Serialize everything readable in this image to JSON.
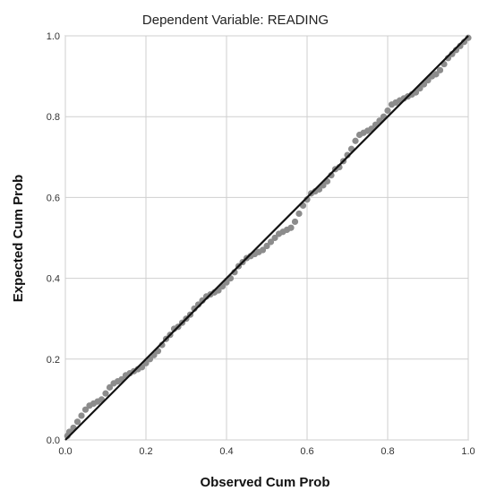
{
  "chart_data": {
    "type": "scatter",
    "title": "Dependent Variable: READING",
    "xlabel": "Observed Cum Prob",
    "ylabel": "Expected Cum Prob",
    "xlim": [
      0,
      1
    ],
    "ylim": [
      0,
      1
    ],
    "x_ticks": [
      "0.0",
      "0.2",
      "0.4",
      "0.6",
      "0.8",
      "1.0"
    ],
    "y_ticks": [
      "0.0",
      "0.2",
      "0.4",
      "0.6",
      "0.8",
      "1.0"
    ],
    "grid": true,
    "reference_line": [
      [
        0,
        0
      ],
      [
        1,
        1
      ]
    ],
    "point_color": "#8c8c8c",
    "line_color": "#111111",
    "points": [
      [
        0.005,
        0.01
      ],
      [
        0.01,
        0.02
      ],
      [
        0.02,
        0.03
      ],
      [
        0.03,
        0.045
      ],
      [
        0.04,
        0.06
      ],
      [
        0.05,
        0.075
      ],
      [
        0.06,
        0.085
      ],
      [
        0.07,
        0.09
      ],
      [
        0.08,
        0.095
      ],
      [
        0.09,
        0.1
      ],
      [
        0.1,
        0.115
      ],
      [
        0.11,
        0.13
      ],
      [
        0.12,
        0.14
      ],
      [
        0.13,
        0.145
      ],
      [
        0.14,
        0.15
      ],
      [
        0.15,
        0.16
      ],
      [
        0.16,
        0.165
      ],
      [
        0.17,
        0.17
      ],
      [
        0.18,
        0.175
      ],
      [
        0.19,
        0.18
      ],
      [
        0.2,
        0.19
      ],
      [
        0.21,
        0.2
      ],
      [
        0.22,
        0.21
      ],
      [
        0.23,
        0.22
      ],
      [
        0.24,
        0.235
      ],
      [
        0.25,
        0.25
      ],
      [
        0.26,
        0.26
      ],
      [
        0.27,
        0.275
      ],
      [
        0.28,
        0.28
      ],
      [
        0.29,
        0.29
      ],
      [
        0.3,
        0.3
      ],
      [
        0.31,
        0.31
      ],
      [
        0.32,
        0.325
      ],
      [
        0.33,
        0.335
      ],
      [
        0.34,
        0.345
      ],
      [
        0.35,
        0.355
      ],
      [
        0.36,
        0.36
      ],
      [
        0.37,
        0.365
      ],
      [
        0.38,
        0.37
      ],
      [
        0.39,
        0.38
      ],
      [
        0.4,
        0.39
      ],
      [
        0.41,
        0.4
      ],
      [
        0.42,
        0.415
      ],
      [
        0.43,
        0.43
      ],
      [
        0.44,
        0.44
      ],
      [
        0.45,
        0.45
      ],
      [
        0.46,
        0.455
      ],
      [
        0.47,
        0.46
      ],
      [
        0.48,
        0.465
      ],
      [
        0.49,
        0.47
      ],
      [
        0.5,
        0.48
      ],
      [
        0.51,
        0.49
      ],
      [
        0.52,
        0.5
      ],
      [
        0.53,
        0.51
      ],
      [
        0.54,
        0.515
      ],
      [
        0.55,
        0.52
      ],
      [
        0.56,
        0.525
      ],
      [
        0.57,
        0.54
      ],
      [
        0.58,
        0.56
      ],
      [
        0.59,
        0.58
      ],
      [
        0.6,
        0.595
      ],
      [
        0.61,
        0.61
      ],
      [
        0.62,
        0.615
      ],
      [
        0.63,
        0.62
      ],
      [
        0.64,
        0.63
      ],
      [
        0.65,
        0.64
      ],
      [
        0.66,
        0.655
      ],
      [
        0.67,
        0.67
      ],
      [
        0.68,
        0.675
      ],
      [
        0.69,
        0.69
      ],
      [
        0.7,
        0.705
      ],
      [
        0.71,
        0.72
      ],
      [
        0.72,
        0.74
      ],
      [
        0.73,
        0.755
      ],
      [
        0.74,
        0.76
      ],
      [
        0.75,
        0.765
      ],
      [
        0.76,
        0.77
      ],
      [
        0.77,
        0.78
      ],
      [
        0.78,
        0.79
      ],
      [
        0.79,
        0.8
      ],
      [
        0.8,
        0.815
      ],
      [
        0.81,
        0.83
      ],
      [
        0.82,
        0.835
      ],
      [
        0.83,
        0.84
      ],
      [
        0.84,
        0.845
      ],
      [
        0.85,
        0.85
      ],
      [
        0.86,
        0.855
      ],
      [
        0.87,
        0.86
      ],
      [
        0.88,
        0.87
      ],
      [
        0.89,
        0.88
      ],
      [
        0.9,
        0.89
      ],
      [
        0.91,
        0.9
      ],
      [
        0.92,
        0.905
      ],
      [
        0.93,
        0.915
      ],
      [
        0.94,
        0.93
      ],
      [
        0.95,
        0.945
      ],
      [
        0.96,
        0.955
      ],
      [
        0.97,
        0.965
      ],
      [
        0.98,
        0.975
      ],
      [
        0.99,
        0.985
      ],
      [
        1.0,
        0.995
      ]
    ]
  }
}
